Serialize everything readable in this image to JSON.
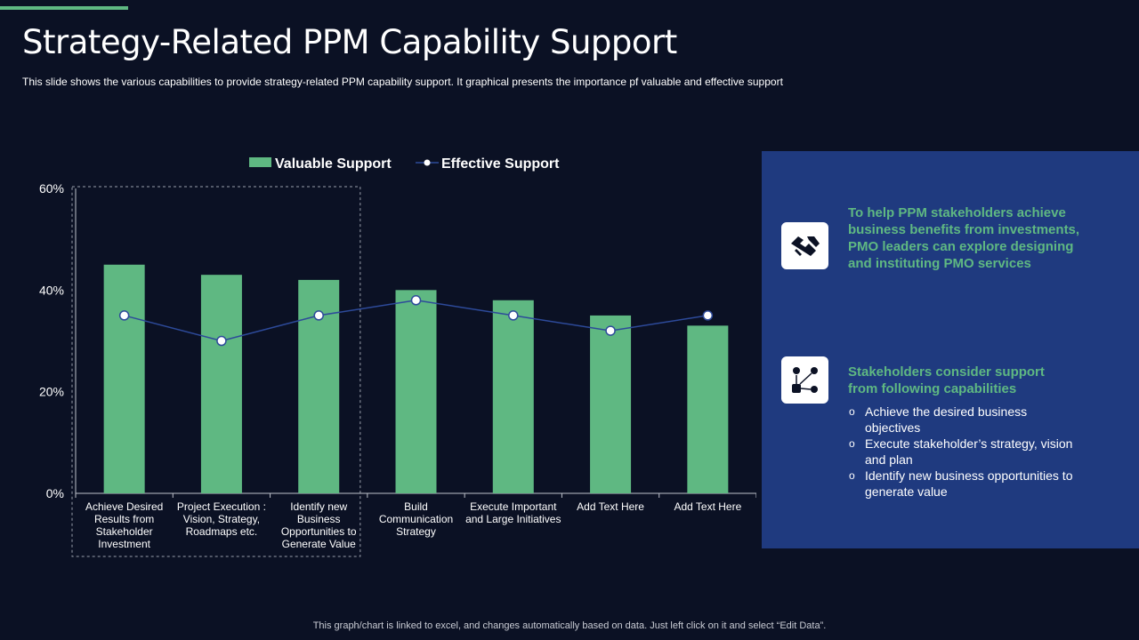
{
  "slide": {
    "title": "Strategy-Related PPM Capability Support",
    "subtitle": "This slide shows the various  capabilities to provide  strategy-related PPM capability support. It graphical presents the importance pf valuable  and effective  support",
    "footer_note": "This graph/chart is linked to excel,  and changes automatically based on data. Just left click on it and select “Edit Data”."
  },
  "chart_data": {
    "type": "bar",
    "categories": [
      "Achieve Desired Results from Stakeholder Investment",
      "Project Execution : Vision, Strategy, Roadmaps etc.",
      "Identify new Business Opportunities to Generate Value",
      "Build Communication Strategy",
      "Execute Important and Large Initiatives",
      "Add Text Here",
      "Add Text Here"
    ],
    "category_lines": [
      [
        "Achieve Desired",
        "Results from",
        "Stakeholder",
        "Investment"
      ],
      [
        "Project Execution :",
        "Vision, Strategy,",
        "Roadmaps etc."
      ],
      [
        "Identify new",
        "Business",
        "Opportunities to",
        "Generate Value"
      ],
      [
        "Build",
        "Communication",
        "Strategy"
      ],
      [
        "Execute Important",
        "and Large Initiatives"
      ],
      [
        "Add Text Here"
      ],
      [
        "Add Text Here"
      ]
    ],
    "series": [
      {
        "name": "Valuable Support",
        "kind": "bar",
        "color": "#5fb882",
        "values": [
          45,
          43,
          42,
          40,
          38,
          35,
          33
        ]
      },
      {
        "name": "Effective Support",
        "kind": "line",
        "color": "#2d4a9a",
        "values": [
          35,
          30,
          35,
          38,
          35,
          32,
          35
        ]
      }
    ],
    "y_ticks": [
      "0%",
      "20%",
      "40%",
      "60%"
    ],
    "ylim": [
      0,
      60
    ],
    "highlighted_categories": [
      0,
      1,
      2
    ],
    "legend_position": "top",
    "grid": false
  },
  "panel": {
    "block1_text": "To help PPM stakeholders achieve business benefits from investments,  PMO leaders can explore designing and instituting PMO services",
    "block2_heading": "Stakeholders consider support from following capabilities",
    "bullets": [
      "Achieve the desired business objectives",
      "Execute stakeholder’s strategy, vision and plan",
      "Identify  new business opportunities to generate value"
    ],
    "icon1": "handshake-icon",
    "icon2": "stakeholder-network-icon"
  }
}
